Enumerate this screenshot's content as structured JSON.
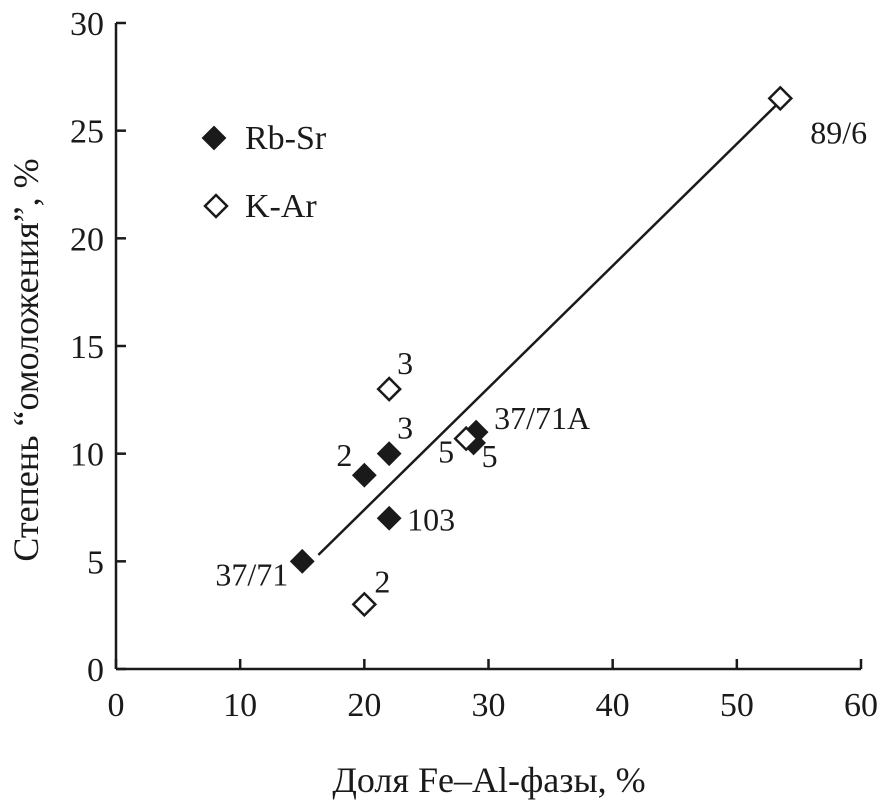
{
  "chart_data": {
    "type": "scatter",
    "xlabel": "Доля Fe–Al-фазы, %",
    "ylabel": "Степень “омоложения”, %",
    "xlim": [
      0,
      60
    ],
    "ylim": [
      0,
      30
    ],
    "x_ticks": [
      0,
      10,
      20,
      30,
      40,
      50,
      60
    ],
    "y_ticks": [
      0,
      5,
      10,
      15,
      20,
      25,
      30
    ],
    "grid": false,
    "legend_position": "top-left",
    "series": [
      {
        "name": "Rb-Sr",
        "marker": "filled-diamond",
        "points": [
          {
            "x": 15,
            "y": 5,
            "label": "37/71"
          },
          {
            "x": 20,
            "y": 9,
            "label": "2"
          },
          {
            "x": 22,
            "y": 10,
            "label": "3"
          },
          {
            "x": 22,
            "y": 7,
            "label": "103"
          },
          {
            "x": 29,
            "y": 11,
            "label": "37/71A"
          },
          {
            "x": 28.8,
            "y": 10.5,
            "label": "5"
          }
        ]
      },
      {
        "name": "K-Ar",
        "marker": "open-diamond",
        "points": [
          {
            "x": 20,
            "y": 3,
            "label": "2"
          },
          {
            "x": 22,
            "y": 13,
            "label": "3"
          },
          {
            "x": 28.2,
            "y": 10.7,
            "label": "5"
          },
          {
            "x": 53.5,
            "y": 26.5,
            "label": "89/6"
          }
        ]
      }
    ],
    "trendline": {
      "x": [
        16.3,
        53.2
      ],
      "y": [
        5.3,
        26.2
      ]
    },
    "colors": {
      "ink": "#1a1a1a",
      "background": "#ffffff"
    }
  }
}
